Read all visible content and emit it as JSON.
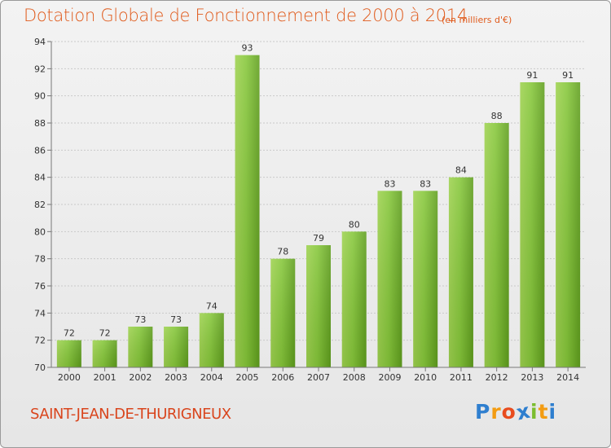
{
  "chart_data": {
    "type": "bar",
    "title": "Dotation Globale de Fonctionnement de 2000 à 2014",
    "subtitle": "(en milliers d'€)",
    "categories": [
      "2000",
      "2001",
      "2002",
      "2003",
      "2004",
      "2005",
      "2006",
      "2007",
      "2008",
      "2009",
      "2010",
      "2011",
      "2012",
      "2013",
      "2014"
    ],
    "values": [
      72,
      72,
      73,
      73,
      74,
      93,
      78,
      79,
      80,
      83,
      83,
      84,
      88,
      91,
      91
    ],
    "ylim": [
      70,
      94
    ],
    "yticks": [
      70,
      72,
      74,
      76,
      78,
      80,
      82,
      84,
      86,
      88,
      90,
      92,
      94
    ],
    "grid": true,
    "bar_color": "#7bbd2f"
  },
  "commune": "SAINT-JEAN-DE-THURIGNEUX",
  "logo": {
    "letters": [
      "P",
      "r",
      "o",
      "x",
      "i",
      "t",
      "i"
    ],
    "colors": [
      "#2f7fcf",
      "#f39c12",
      "#e84c1e",
      "#2f7fcf",
      "#7bbd2f",
      "#f39c12",
      "#2f7fcf"
    ]
  }
}
